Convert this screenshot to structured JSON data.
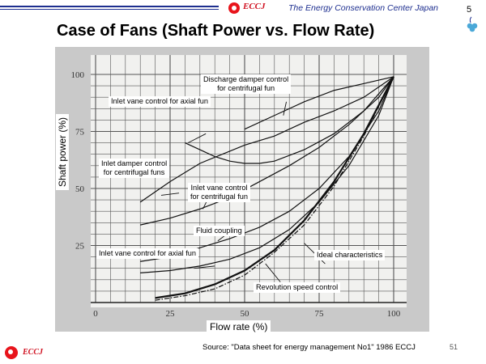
{
  "header": {
    "eccj": "ECCJ",
    "org": "The Energy Conservation Center Japan",
    "page_top": "5"
  },
  "title": "Case of Fans (Shaft Power vs. Flow Rate)",
  "footer": {
    "source": "Source: \"Data sheet for energy management No1\" 1986 ECCJ",
    "page": "51",
    "eccj": "ECCJ"
  },
  "colors": {
    "brand_red": "#e8141b",
    "brand_blue": "#1d2e8f",
    "clover_blue": "#4aa8d8"
  },
  "chart_data": {
    "type": "line",
    "xlabel": "Flow rate (%)",
    "ylabel": "Shaft power  (%)",
    "xlim": [
      0,
      100
    ],
    "ylim": [
      0,
      100
    ],
    "x_ticks": [
      "0",
      "25",
      "50",
      "75",
      "100"
    ],
    "y_ticks": [
      "25",
      "50",
      "75",
      "100"
    ],
    "grid": true,
    "annotations": [
      {
        "key": "discharge",
        "lines": [
          "Discharge damper control",
          "for centrifugal fun"
        ]
      },
      {
        "key": "inletAxialTop",
        "lines": [
          "Inlet vane control for axial fun"
        ]
      },
      {
        "key": "inletDamper",
        "lines": [
          "Inlet damper control",
          "for centrifugal funs"
        ]
      },
      {
        "key": "inletVaneCentri",
        "lines": [
          "Inlet vane  control",
          "for centrifugal fun"
        ]
      },
      {
        "key": "fluid",
        "lines": [
          "Fluid coupling"
        ]
      },
      {
        "key": "inletAxialBottom",
        "lines": [
          "Inlet vane control for axial fun"
        ]
      },
      {
        "key": "ideal",
        "lines": [
          "Ideal characteristics"
        ]
      },
      {
        "key": "revolution",
        "lines": [
          "Revolution speed control"
        ]
      }
    ],
    "series": [
      {
        "key": "discharge",
        "points": [
          [
            50,
            76
          ],
          [
            60,
            82
          ],
          [
            70,
            88
          ],
          [
            80,
            93
          ],
          [
            90,
            96
          ],
          [
            100,
            99
          ]
        ]
      },
      {
        "key": "inletAxialTop",
        "points": [
          [
            30,
            70
          ],
          [
            35,
            67
          ],
          [
            40,
            64
          ],
          [
            45,
            62
          ],
          [
            50,
            61
          ],
          [
            55,
            61
          ],
          [
            60,
            62
          ],
          [
            70,
            67
          ],
          [
            80,
            74
          ],
          [
            90,
            84
          ],
          [
            100,
            99
          ]
        ]
      },
      {
        "key": "inletDamper",
        "points": [
          [
            15,
            44
          ],
          [
            25,
            53
          ],
          [
            35,
            61
          ],
          [
            50,
            69
          ],
          [
            60,
            73
          ],
          [
            70,
            79
          ],
          [
            80,
            84
          ],
          [
            90,
            90
          ],
          [
            100,
            99
          ]
        ]
      },
      {
        "key": "inletVaneCentri",
        "points": [
          [
            15,
            34
          ],
          [
            25,
            37
          ],
          [
            35,
            41
          ],
          [
            45,
            46
          ],
          [
            55,
            53
          ],
          [
            65,
            60
          ],
          [
            75,
            68
          ],
          [
            85,
            78
          ],
          [
            95,
            90
          ],
          [
            100,
            99
          ]
        ]
      },
      {
        "key": "fluid",
        "points": [
          [
            15,
            18
          ],
          [
            25,
            20
          ],
          [
            35,
            24
          ],
          [
            45,
            28
          ],
          [
            55,
            33
          ],
          [
            65,
            40
          ],
          [
            75,
            50
          ],
          [
            85,
            64
          ],
          [
            95,
            84
          ],
          [
            100,
            99
          ]
        ]
      },
      {
        "key": "inletAxialBottom",
        "points": [
          [
            15,
            13
          ],
          [
            25,
            14
          ],
          [
            35,
            16
          ],
          [
            45,
            19
          ],
          [
            55,
            24
          ],
          [
            65,
            32
          ],
          [
            75,
            44
          ],
          [
            85,
            60
          ],
          [
            95,
            82
          ],
          [
            100,
            99
          ]
        ]
      },
      {
        "key": "ideal",
        "points": [
          [
            20,
            1
          ],
          [
            30,
            3
          ],
          [
            40,
            6
          ],
          [
            50,
            12
          ],
          [
            60,
            22
          ],
          [
            70,
            34
          ],
          [
            80,
            51
          ],
          [
            90,
            73
          ],
          [
            100,
            99
          ]
        ]
      },
      {
        "key": "revolution",
        "points": [
          [
            20,
            2
          ],
          [
            30,
            4
          ],
          [
            40,
            8
          ],
          [
            50,
            14
          ],
          [
            60,
            23
          ],
          [
            70,
            36
          ],
          [
            80,
            53
          ],
          [
            90,
            74
          ],
          [
            100,
            99
          ]
        ]
      }
    ]
  }
}
